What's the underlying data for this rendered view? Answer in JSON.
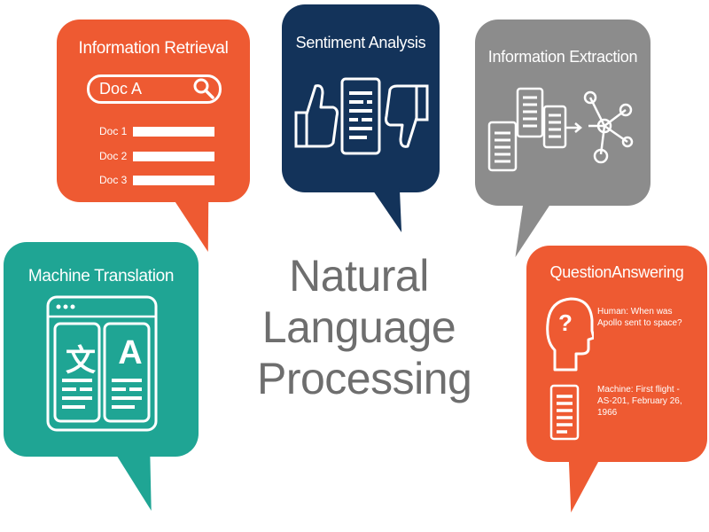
{
  "center_title": {
    "line1": "Natural",
    "line2": "Language",
    "line3": "Processing"
  },
  "info_retrieval": {
    "title": "Information Retrieval",
    "search_text": "Doc A",
    "rows": [
      "Doc 1",
      "Doc 2",
      "Doc 3"
    ],
    "color": "#ee5a32"
  },
  "sentiment": {
    "title": "Sentiment Analysis",
    "color": "#13335a"
  },
  "extraction": {
    "title": "Information Extraction",
    "color": "#8c8c8c"
  },
  "translation": {
    "title": "Machine Translation",
    "glyph_source": "文",
    "glyph_target": "A",
    "color": "#1fa594"
  },
  "qa": {
    "title": "QuestionAnswering",
    "question_mark": "?",
    "human": "Human: When was Apollo sent to space?",
    "machine": "Machine: First flight - AS-201, February 26, 1966",
    "color": "#ee5a32"
  }
}
